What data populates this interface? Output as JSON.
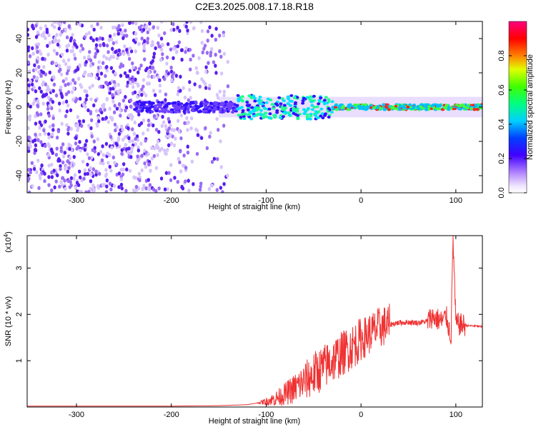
{
  "title": "C2E3.2025.008.17.18.R18",
  "chart_data": [
    {
      "type": "heatmap",
      "xlabel": "Height of straight line (km)",
      "ylabel": "Frequency (Hz)",
      "xlim": [
        -352,
        128
      ],
      "ylim": [
        -50,
        50
      ],
      "xticks": [
        "-300",
        "-200",
        "-100",
        "0",
        "100"
      ],
      "yticks": [
        "-40",
        "-20",
        "0",
        "20",
        "40"
      ],
      "colorbar": {
        "label": "Normalized spectral amplitude",
        "range": [
          0,
          1
        ],
        "ticks": [
          "0.0",
          "0.2",
          "0.4",
          "0.6",
          "0.8"
        ]
      },
      "features": {
        "noise_region_x": [
          -352,
          -150
        ],
        "signal_band_center_hz": 0,
        "signal_band_halfwidth_hz": 3,
        "strong_signal_x": [
          -30,
          128
        ],
        "turbulent_region_x": [
          -130,
          -30
        ]
      }
    },
    {
      "type": "line",
      "xlabel": "Height of straight line (km)",
      "ylabel": "SNR (10 * v/v)",
      "multiplier_label": "(x10",
      "multiplier_exp": "4",
      "xlim": [
        -352,
        128
      ],
      "ylim": [
        0,
        3.7
      ],
      "xticks": [
        "-300",
        "-200",
        "-100",
        "0",
        "100"
      ],
      "yticks": [
        "1",
        "2",
        "3"
      ],
      "color": "#f03232",
      "series": [
        {
          "x": [
            -352,
            -300,
            -250,
            -200,
            -150,
            -120,
            -100,
            -90,
            -80,
            -70,
            -60,
            -50,
            -40,
            -30,
            -20,
            -10,
            0,
            10,
            20,
            30,
            40,
            50,
            60,
            70,
            75,
            80,
            85,
            90,
            95,
            97,
            100,
            105,
            110,
            120,
            128
          ],
          "y": [
            0.02,
            0.02,
            0.02,
            0.02,
            0.03,
            0.05,
            0.12,
            0.18,
            0.28,
            0.4,
            0.55,
            0.7,
            0.85,
            1.0,
            1.15,
            1.3,
            1.45,
            1.6,
            1.72,
            1.78,
            1.82,
            1.83,
            1.82,
            1.85,
            1.95,
            1.9,
            1.85,
            1.95,
            1.5,
            3.7,
            1.8,
            1.78,
            1.76,
            1.75,
            1.73
          ]
        }
      ]
    }
  ]
}
